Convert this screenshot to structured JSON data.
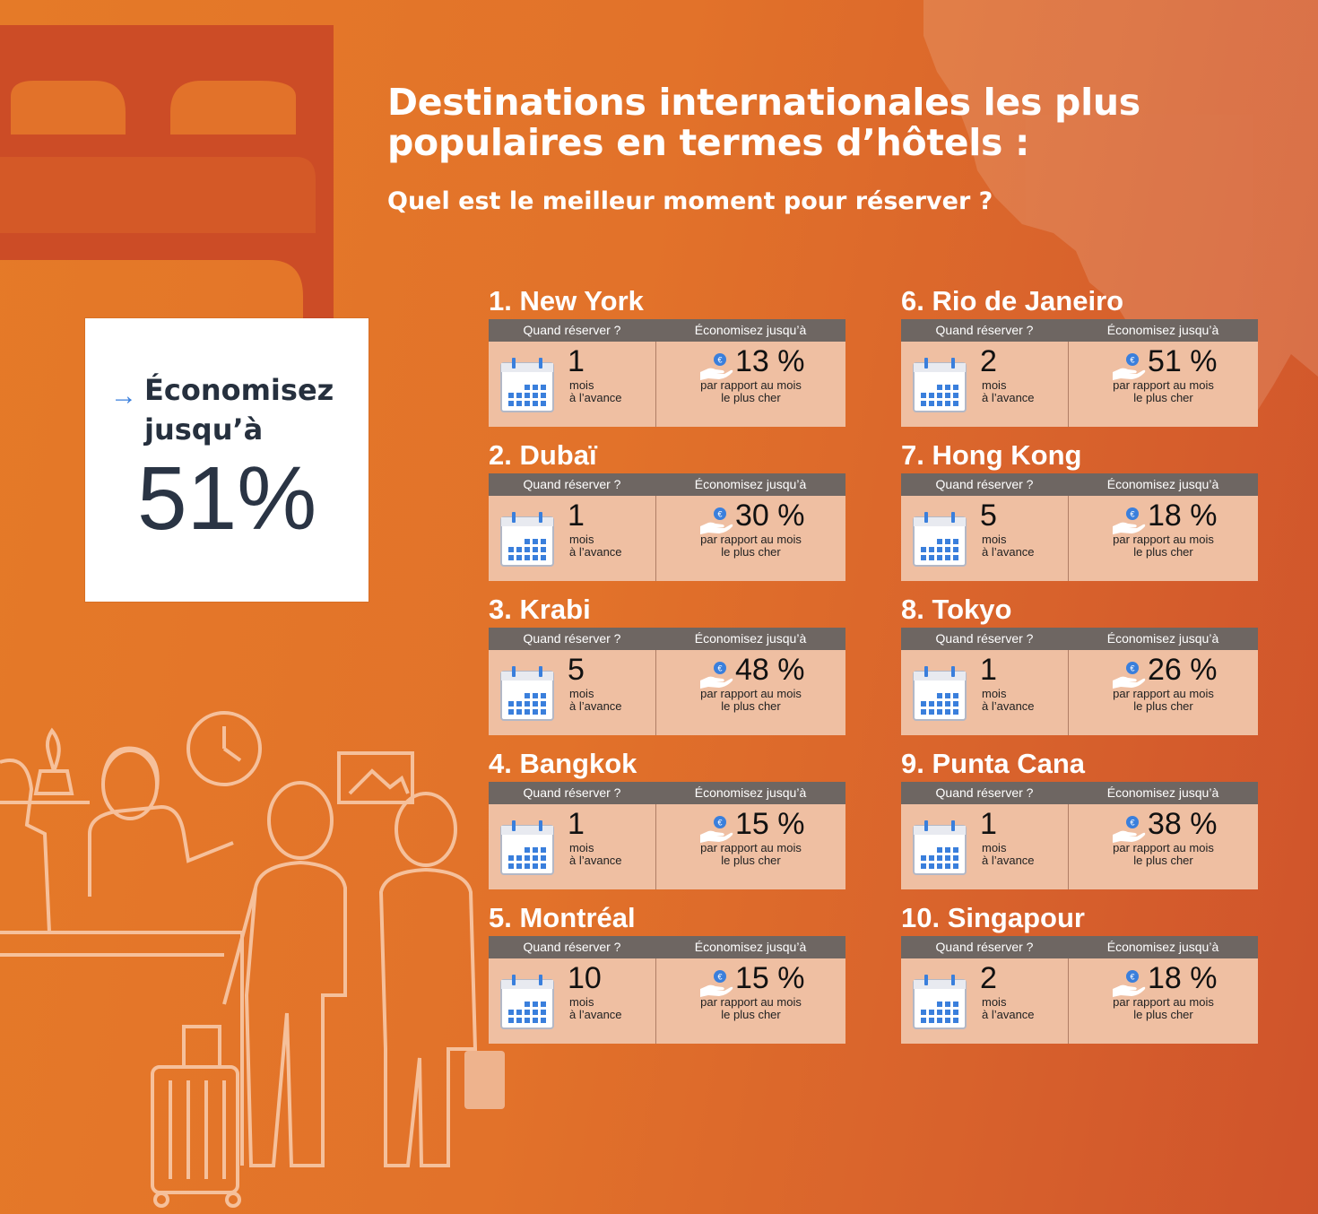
{
  "title_line1": "Destinations internationales les plus",
  "title_line2": "populaires en termes d’hôtels :",
  "subtitle": "Quel est le meilleur moment pour réserver ?",
  "promo": {
    "text_line1": "Économisez",
    "text_line2": "jusqu’à",
    "value": "51%"
  },
  "labels": {
    "when_header": "Quand réserver ?",
    "save_header": "Économisez jusqu’à",
    "months_unit_line1": "mois",
    "months_unit_line2": "à l’avance",
    "compare_line1": "par rapport au mois",
    "compare_line2": "le plus cher"
  },
  "destinations": [
    {
      "title": "1. New York",
      "months": "1",
      "savings": "13 %"
    },
    {
      "title": "2. Dubaï",
      "months": "1",
      "savings": "30 %"
    },
    {
      "title": "3. Krabi",
      "months": "5",
      "savings": "48 %"
    },
    {
      "title": "4. Bangkok",
      "months": "1",
      "savings": "15 %"
    },
    {
      "title": "5. Montréal",
      "months": "10",
      "savings": "15 %"
    },
    {
      "title": "6. Rio de Janeiro",
      "months": "2",
      "savings": "51 %"
    },
    {
      "title": "7. Hong Kong",
      "months": "5",
      "savings": "18 %"
    },
    {
      "title": "8. Tokyo",
      "months": "1",
      "savings": "26 %"
    },
    {
      "title": "9. Punta Cana",
      "months": "1",
      "savings": "38 %"
    },
    {
      "title": "10. Singapour",
      "months": "2",
      "savings": "18 %"
    }
  ],
  "colors": {
    "background": "#e2722a",
    "header_bar": "#6e6662",
    "card_body": "#efbfa2",
    "calendar_blue": "#3a7fdc",
    "dark_text": "#26303e"
  },
  "icons": [
    "calendar-icon",
    "euro-hand-icon",
    "arrow-icon"
  ]
}
